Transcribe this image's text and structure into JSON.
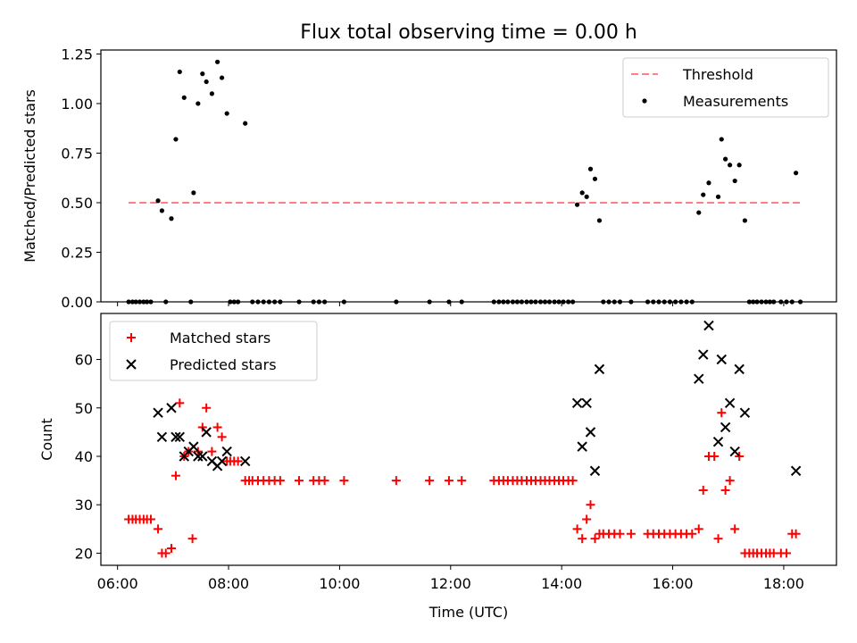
{
  "chart_data": [
    {
      "type": "scatter",
      "title": "Flux total observing time = 0.00 h",
      "xlabel": "",
      "ylabel": "Matched/Predicted stars",
      "x_unit": "hours (UTC)",
      "xlim": [
        5.7,
        18.95
      ],
      "ylim": [
        0,
        1.27
      ],
      "yticks": [
        0,
        0.25,
        0.5,
        0.75,
        1.0,
        1.25
      ],
      "ytick_labels": [
        "0.00",
        "0.25",
        "0.50",
        "0.75",
        "1.00",
        "1.25"
      ],
      "xticks": [
        6,
        8,
        10,
        12,
        14,
        16,
        18
      ],
      "legend_position": "upper right",
      "legend": [
        "Threshold",
        "Measurements"
      ],
      "threshold": {
        "name": "Threshold",
        "y": 0.5,
        "x_start": 6.2,
        "x_end": 18.3,
        "color": "#ff8080",
        "style": "dashed"
      },
      "series": [
        {
          "name": "Measurements",
          "color": "#000000",
          "marker": "dot",
          "points": [
            [
              6.2,
              0
            ],
            [
              6.27,
              0
            ],
            [
              6.33,
              0
            ],
            [
              6.4,
              0
            ],
            [
              6.47,
              0
            ],
            [
              6.53,
              0
            ],
            [
              6.6,
              0
            ],
            [
              6.73,
              0.51
            ],
            [
              6.8,
              0.46
            ],
            [
              6.87,
              0
            ],
            [
              6.97,
              0.42
            ],
            [
              7.05,
              0.82
            ],
            [
              7.12,
              1.16
            ],
            [
              7.2,
              1.03
            ],
            [
              7.32,
              0
            ],
            [
              7.37,
              0.55
            ],
            [
              7.45,
              1.0
            ],
            [
              7.53,
              1.15
            ],
            [
              7.6,
              1.11
            ],
            [
              7.7,
              1.05
            ],
            [
              7.8,
              1.21
            ],
            [
              7.88,
              1.13
            ],
            [
              7.97,
              0.95
            ],
            [
              8.03,
              0
            ],
            [
              8.1,
              0
            ],
            [
              8.17,
              0
            ],
            [
              8.3,
              0.9
            ],
            [
              8.43,
              0
            ],
            [
              8.53,
              0
            ],
            [
              8.63,
              0
            ],
            [
              8.73,
              0
            ],
            [
              8.83,
              0
            ],
            [
              8.93,
              0
            ],
            [
              9.27,
              0
            ],
            [
              9.53,
              0
            ],
            [
              9.63,
              0
            ],
            [
              9.73,
              0
            ],
            [
              10.08,
              0
            ],
            [
              11.02,
              0
            ],
            [
              11.62,
              0
            ],
            [
              11.97,
              0
            ],
            [
              12.2,
              0
            ],
            [
              12.78,
              0
            ],
            [
              12.87,
              0
            ],
            [
              12.95,
              0
            ],
            [
              13.03,
              0
            ],
            [
              13.12,
              0
            ],
            [
              13.2,
              0
            ],
            [
              13.28,
              0
            ],
            [
              13.37,
              0
            ],
            [
              13.45,
              0
            ],
            [
              13.53,
              0
            ],
            [
              13.62,
              0
            ],
            [
              13.7,
              0
            ],
            [
              13.78,
              0
            ],
            [
              13.87,
              0
            ],
            [
              13.95,
              0
            ],
            [
              14.03,
              0
            ],
            [
              14.12,
              0
            ],
            [
              14.2,
              0
            ],
            [
              14.28,
              0.49
            ],
            [
              14.37,
              0.55
            ],
            [
              14.45,
              0.53
            ],
            [
              14.52,
              0.67
            ],
            [
              14.6,
              0.62
            ],
            [
              14.68,
              0.41
            ],
            [
              14.75,
              0
            ],
            [
              14.85,
              0
            ],
            [
              14.95,
              0
            ],
            [
              15.05,
              0
            ],
            [
              15.25,
              0
            ],
            [
              15.55,
              0
            ],
            [
              15.65,
              0
            ],
            [
              15.75,
              0
            ],
            [
              15.85,
              0
            ],
            [
              15.95,
              0
            ],
            [
              16.05,
              0
            ],
            [
              16.15,
              0
            ],
            [
              16.25,
              0
            ],
            [
              16.35,
              0
            ],
            [
              16.47,
              0.45
            ],
            [
              16.55,
              0.54
            ],
            [
              16.65,
              0.6
            ],
            [
              16.82,
              0.53
            ],
            [
              16.88,
              0.82
            ],
            [
              16.95,
              0.72
            ],
            [
              17.03,
              0.69
            ],
            [
              17.12,
              0.61
            ],
            [
              17.2,
              0.69
            ],
            [
              17.3,
              0.41
            ],
            [
              17.38,
              0
            ],
            [
              17.45,
              0
            ],
            [
              17.52,
              0
            ],
            [
              17.6,
              0
            ],
            [
              17.68,
              0
            ],
            [
              17.75,
              0
            ],
            [
              17.82,
              0
            ],
            [
              17.95,
              0
            ],
            [
              18.05,
              0
            ],
            [
              18.15,
              0
            ],
            [
              18.22,
              0.65
            ],
            [
              18.3,
              0
            ]
          ]
        }
      ]
    },
    {
      "type": "scatter",
      "title": "",
      "xlabel": "Time (UTC)",
      "ylabel": "Count",
      "x_unit": "hours (UTC)",
      "xlim": [
        5.7,
        18.95
      ],
      "ylim": [
        17.5,
        69.5
      ],
      "yticks": [
        20,
        30,
        40,
        50,
        60
      ],
      "xticks": [
        6,
        8,
        10,
        12,
        14,
        16,
        18
      ],
      "xtick_labels": [
        "06:00",
        "08:00",
        "10:00",
        "12:00",
        "14:00",
        "16:00",
        "18:00"
      ],
      "legend_position": "upper left",
      "legend": [
        "Matched stars",
        "Predicted stars"
      ],
      "series": [
        {
          "name": "Matched stars",
          "color": "#ff0000",
          "marker": "plus",
          "points": [
            [
              6.2,
              27
            ],
            [
              6.27,
              27
            ],
            [
              6.33,
              27
            ],
            [
              6.4,
              27
            ],
            [
              6.47,
              27
            ],
            [
              6.53,
              27
            ],
            [
              6.6,
              27
            ],
            [
              6.73,
              25
            ],
            [
              6.8,
              20
            ],
            [
              6.87,
              20
            ],
            [
              6.97,
              21
            ],
            [
              7.05,
              36
            ],
            [
              7.12,
              51
            ],
            [
              7.2,
              40
            ],
            [
              7.28,
              41
            ],
            [
              7.35,
              23
            ],
            [
              7.45,
              41
            ],
            [
              7.53,
              46
            ],
            [
              7.6,
              50
            ],
            [
              7.7,
              41
            ],
            [
              7.8,
              46
            ],
            [
              7.88,
              44
            ],
            [
              7.97,
              39
            ],
            [
              8.03,
              39
            ],
            [
              8.1,
              39
            ],
            [
              8.17,
              39
            ],
            [
              8.3,
              35
            ],
            [
              8.37,
              35
            ],
            [
              8.43,
              35
            ],
            [
              8.53,
              35
            ],
            [
              8.63,
              35
            ],
            [
              8.73,
              35
            ],
            [
              8.83,
              35
            ],
            [
              8.93,
              35
            ],
            [
              9.27,
              35
            ],
            [
              9.53,
              35
            ],
            [
              9.63,
              35
            ],
            [
              9.73,
              35
            ],
            [
              10.08,
              35
            ],
            [
              11.02,
              35
            ],
            [
              11.62,
              35
            ],
            [
              11.97,
              35
            ],
            [
              12.2,
              35
            ],
            [
              12.78,
              35
            ],
            [
              12.87,
              35
            ],
            [
              12.95,
              35
            ],
            [
              13.03,
              35
            ],
            [
              13.12,
              35
            ],
            [
              13.2,
              35
            ],
            [
              13.28,
              35
            ],
            [
              13.37,
              35
            ],
            [
              13.45,
              35
            ],
            [
              13.53,
              35
            ],
            [
              13.62,
              35
            ],
            [
              13.7,
              35
            ],
            [
              13.78,
              35
            ],
            [
              13.87,
              35
            ],
            [
              13.95,
              35
            ],
            [
              14.03,
              35
            ],
            [
              14.12,
              35
            ],
            [
              14.2,
              35
            ],
            [
              14.28,
              25
            ],
            [
              14.37,
              23
            ],
            [
              14.45,
              27
            ],
            [
              14.52,
              30
            ],
            [
              14.6,
              23
            ],
            [
              14.68,
              24
            ],
            [
              14.75,
              24
            ],
            [
              14.85,
              24
            ],
            [
              14.95,
              24
            ],
            [
              15.05,
              24
            ],
            [
              15.25,
              24
            ],
            [
              15.55,
              24
            ],
            [
              15.65,
              24
            ],
            [
              15.75,
              24
            ],
            [
              15.85,
              24
            ],
            [
              15.95,
              24
            ],
            [
              16.05,
              24
            ],
            [
              16.15,
              24
            ],
            [
              16.25,
              24
            ],
            [
              16.35,
              24
            ],
            [
              16.47,
              25
            ],
            [
              16.55,
              33
            ],
            [
              16.65,
              40
            ],
            [
              16.75,
              40
            ],
            [
              16.82,
              23
            ],
            [
              16.88,
              49
            ],
            [
              16.95,
              33
            ],
            [
              17.03,
              35
            ],
            [
              17.12,
              25
            ],
            [
              17.2,
              40
            ],
            [
              17.3,
              20
            ],
            [
              17.38,
              20
            ],
            [
              17.45,
              20
            ],
            [
              17.52,
              20
            ],
            [
              17.6,
              20
            ],
            [
              17.68,
              20
            ],
            [
              17.75,
              20
            ],
            [
              17.82,
              20
            ],
            [
              17.95,
              20
            ],
            [
              18.05,
              20
            ],
            [
              18.15,
              24
            ],
            [
              18.22,
              24
            ]
          ]
        },
        {
          "name": "Predicted stars",
          "color": "#000000",
          "marker": "x",
          "points": [
            [
              6.73,
              49
            ],
            [
              6.8,
              44
            ],
            [
              6.97,
              50
            ],
            [
              7.05,
              44
            ],
            [
              7.12,
              44
            ],
            [
              7.2,
              40
            ],
            [
              7.28,
              41
            ],
            [
              7.37,
              42
            ],
            [
              7.45,
              40
            ],
            [
              7.53,
              40
            ],
            [
              7.6,
              45
            ],
            [
              7.7,
              39
            ],
            [
              7.8,
              38
            ],
            [
              7.88,
              39
            ],
            [
              7.97,
              41
            ],
            [
              8.3,
              39
            ],
            [
              14.28,
              51
            ],
            [
              14.37,
              42
            ],
            [
              14.45,
              51
            ],
            [
              14.52,
              45
            ],
            [
              14.6,
              37
            ],
            [
              14.68,
              58
            ],
            [
              16.47,
              56
            ],
            [
              16.55,
              61
            ],
            [
              16.65,
              67
            ],
            [
              16.82,
              43
            ],
            [
              16.88,
              60
            ],
            [
              16.95,
              46
            ],
            [
              17.03,
              51
            ],
            [
              17.12,
              41
            ],
            [
              17.2,
              58
            ],
            [
              17.3,
              49
            ],
            [
              18.22,
              37
            ]
          ]
        }
      ]
    }
  ]
}
